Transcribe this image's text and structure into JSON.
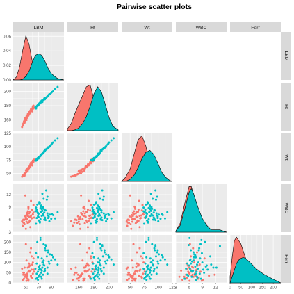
{
  "page": {
    "title": "Pairwise scatter plots"
  },
  "colors": {
    "group_a": "#F8766D",
    "group_b": "#00BFC4",
    "panel_bg": "#EBEBEB",
    "strip_bg": "#D9D9D9",
    "grid": "#FFFFFF"
  },
  "chart_data": {
    "type": "scatter",
    "subtype": "pairs-matrix",
    "title": "Pairwise scatter plots",
    "variables": [
      "LBM",
      "Ht",
      "Wt",
      "WBC",
      "Ferr"
    ],
    "grid": true,
    "legend": "none",
    "groups": [
      {
        "color": "#F8766D"
      },
      {
        "color": "#00BFC4"
      }
    ],
    "axes": {
      "LBM": {
        "range": [
          30,
          110
        ],
        "ticks": [
          50,
          70,
          90
        ],
        "density_ticks": [
          0.0,
          0.02,
          0.04,
          0.06
        ]
      },
      "Ht": {
        "range": [
          145,
          212
        ],
        "ticks": [
          160,
          180,
          200
        ]
      },
      "Wt": {
        "range": [
          35,
          125
        ],
        "ticks": [
          50,
          75,
          100,
          125
        ]
      },
      "WBC": {
        "range": [
          3,
          14.5
        ],
        "ticks": [
          3,
          6,
          9,
          12
        ]
      },
      "Ferr": {
        "range": [
          0,
          235
        ],
        "ticks": [
          0,
          50,
          100,
          150,
          200
        ]
      }
    },
    "densities": {
      "LBM": {
        "x": [
          30,
          35,
          40,
          45,
          50,
          55,
          60,
          65,
          70,
          75,
          80,
          85,
          90,
          95,
          100,
          105,
          110
        ],
        "a": [
          0,
          0.004,
          0.018,
          0.041,
          0.061,
          0.049,
          0.026,
          0.012,
          0.006,
          0.003,
          0.001,
          0,
          0,
          0,
          0,
          0,
          0
        ],
        "b": [
          0,
          0,
          0,
          0.001,
          0.005,
          0.012,
          0.024,
          0.034,
          0.036,
          0.034,
          0.026,
          0.016,
          0.009,
          0.005,
          0.002,
          0.001,
          0
        ]
      },
      "Ht": {
        "x": [
          145,
          150,
          155,
          160,
          165,
          170,
          175,
          180,
          185,
          190,
          195,
          200,
          205,
          212
        ],
        "a": [
          0.002,
          0.008,
          0.02,
          0.03,
          0.04,
          0.05,
          0.052,
          0.036,
          0.018,
          0.008,
          0.003,
          0.001,
          0,
          0
        ],
        "b": [
          0,
          0,
          0.001,
          0.003,
          0.008,
          0.016,
          0.028,
          0.042,
          0.05,
          0.044,
          0.03,
          0.015,
          0.005,
          0.001
        ]
      },
      "Wt": {
        "x": [
          35,
          42,
          50,
          57,
          64,
          71,
          78,
          85,
          92,
          99,
          106,
          113,
          120,
          125
        ],
        "a": [
          0,
          0.004,
          0.012,
          0.026,
          0.04,
          0.044,
          0.034,
          0.016,
          0.007,
          0.003,
          0.001,
          0,
          0,
          0
        ],
        "b": [
          0,
          0,
          0.002,
          0.006,
          0.013,
          0.022,
          0.028,
          0.03,
          0.026,
          0.018,
          0.009,
          0.004,
          0.001,
          0
        ]
      },
      "WBC": {
        "x": [
          3,
          4,
          5,
          6,
          6.5,
          7,
          7.5,
          8,
          9,
          10,
          11,
          12,
          13,
          14.5
        ],
        "a": [
          0.01,
          0.08,
          0.25,
          0.4,
          0.4,
          0.33,
          0.25,
          0.19,
          0.1,
          0.05,
          0.02,
          0.01,
          0.01,
          0
        ],
        "b": [
          0.01,
          0.06,
          0.2,
          0.35,
          0.38,
          0.34,
          0.28,
          0.22,
          0.12,
          0.06,
          0.02,
          0.02,
          0.02,
          0
        ]
      },
      "Ferr": {
        "x": [
          0,
          10,
          20,
          30,
          40,
          50,
          60,
          70,
          80,
          100,
          120,
          140,
          160,
          180,
          200,
          220,
          235
        ],
        "a": [
          0.002,
          0.008,
          0.013,
          0.014,
          0.013,
          0.012,
          0.01,
          0.008,
          0.006,
          0.004,
          0.0025,
          0.0015,
          0.001,
          0.0007,
          0.0004,
          0.0002,
          0
        ],
        "b": [
          0,
          0.002,
          0.004,
          0.006,
          0.007,
          0.0075,
          0.0078,
          0.0076,
          0.007,
          0.0058,
          0.0044,
          0.0034,
          0.0025,
          0.0018,
          0.0011,
          0.0005,
          0
        ]
      }
    },
    "points": {
      "a": [
        {
          "LBM": 50,
          "Ht": 162,
          "Wt": 52,
          "WBC": 6.6,
          "Ferr": 35
        },
        {
          "LBM": 55,
          "Ht": 168,
          "Wt": 60,
          "WBC": 7.5,
          "Ferr": 60
        },
        {
          "LBM": 47,
          "Ht": 158,
          "Wt": 48,
          "WBC": 5.2,
          "Ferr": 20
        },
        {
          "LBM": 60,
          "Ht": 172,
          "Wt": 65,
          "WBC": 8.4,
          "Ferr": 90
        },
        {
          "LBM": 52,
          "Ht": 165,
          "Wt": 58,
          "WBC": 6.1,
          "Ferr": 45
        },
        {
          "LBM": 58,
          "Ht": 175,
          "Wt": 70,
          "WBC": 7.0,
          "Ferr": 30
        },
        {
          "LBM": 45,
          "Ht": 152,
          "Wt": 45,
          "WBC": 4.5,
          "Ferr": 15
        },
        {
          "LBM": 62,
          "Ht": 176,
          "Wt": 72,
          "WBC": 9.5,
          "Ferr": 120
        },
        {
          "LBM": 56,
          "Ht": 170,
          "Wt": 63,
          "WBC": 5.8,
          "Ferr": 55
        },
        {
          "LBM": 53,
          "Ht": 167,
          "Wt": 55,
          "WBC": 6.9,
          "Ferr": 75
        },
        {
          "LBM": 49,
          "Ht": 163,
          "Wt": 50,
          "WBC": 11.8,
          "Ferr": 40
        },
        {
          "LBM": 57,
          "Ht": 171,
          "Wt": 62,
          "WBC": 7.8,
          "Ferr": 150
        },
        {
          "LBM": 51,
          "Ht": 160,
          "Wt": 54,
          "WBC": 5.5,
          "Ferr": 25
        },
        {
          "LBM": 59,
          "Ht": 174,
          "Wt": 68,
          "WBC": 6.3,
          "Ferr": 65
        },
        {
          "LBM": 54,
          "Ht": 166,
          "Wt": 59,
          "WBC": 8.9,
          "Ferr": 10
        },
        {
          "LBM": 46,
          "Ht": 155,
          "Wt": 47,
          "WBC": 6.0,
          "Ferr": 50
        },
        {
          "LBM": 61,
          "Ht": 178,
          "Wt": 74,
          "WBC": 7.2,
          "Ferr": 100
        },
        {
          "LBM": 48,
          "Ht": 161,
          "Wt": 51,
          "WBC": 4.9,
          "Ferr": 30
        },
        {
          "LBM": 55,
          "Ht": 169,
          "Wt": 61,
          "WBC": 6.7,
          "Ferr": 80
        },
        {
          "LBM": 52,
          "Ht": 164,
          "Wt": 57,
          "WBC": 7.4,
          "Ferr": 45
        },
        {
          "LBM": 44,
          "Ht": 150,
          "Wt": 44,
          "WBC": 5.6,
          "Ferr": 70
        },
        {
          "LBM": 58,
          "Ht": 173,
          "Wt": 66,
          "WBC": 10.5,
          "Ferr": 35
        },
        {
          "LBM": 50,
          "Ht": 162,
          "Wt": 56,
          "WBC": 6.2,
          "Ferr": 190
        },
        {
          "LBM": 63,
          "Ht": 177,
          "Wt": 76,
          "WBC": 6.5,
          "Ferr": 55
        },
        {
          "LBM": 53,
          "Ht": 168,
          "Wt": 60,
          "WBC": 5.1,
          "Ferr": 20
        },
        {
          "LBM": 56,
          "Ht": 170,
          "Wt": 64,
          "WBC": 7.9,
          "Ferr": 85
        },
        {
          "LBM": 49,
          "Ht": 159,
          "Wt": 49,
          "WBC": 6.8,
          "Ferr": 40
        },
        {
          "LBM": 57,
          "Ht": 172,
          "Wt": 67,
          "WBC": 4.2,
          "Ferr": 60
        },
        {
          "LBM": 51,
          "Ht": 165,
          "Wt": 53,
          "WBC": 7.1,
          "Ferr": 110
        },
        {
          "LBM": 60,
          "Ht": 175,
          "Wt": 71,
          "WBC": 8.2,
          "Ferr": 25
        },
        {
          "LBM": 47,
          "Ht": 157,
          "Wt": 48,
          "WBC": 5.9,
          "Ferr": 50
        },
        {
          "LBM": 54,
          "Ht": 167,
          "Wt": 58,
          "WBC": 9.1,
          "Ferr": 15
        },
        {
          "LBM": 59,
          "Ht": 176,
          "Wt": 69,
          "WBC": 6.4,
          "Ferr": 130
        },
        {
          "LBM": 52,
          "Ht": 163,
          "Wt": 55,
          "WBC": 7.6,
          "Ferr": 35
        },
        {
          "LBM": 55,
          "Ht": 171,
          "Wt": 62,
          "WBC": 5.4,
          "Ferr": 95
        },
        {
          "LBM": 48,
          "Ht": 156,
          "Wt": 46,
          "WBC": 6.0,
          "Ferr": 75
        },
        {
          "LBM": 61,
          "Ht": 179,
          "Wt": 73,
          "WBC": 7.3,
          "Ferr": 45
        },
        {
          "LBM": 50,
          "Ht": 162,
          "Wt": 52,
          "WBC": 3.8,
          "Ferr": 30
        },
        {
          "LBM": 56,
          "Ht": 169,
          "Wt": 63,
          "WBC": 6.6,
          "Ferr": 60
        },
        {
          "LBM": 53,
          "Ht": 166,
          "Wt": 57,
          "WBC": 8.0,
          "Ferr": 20
        },
        {
          "LBM": 58,
          "Ht": 174,
          "Wt": 67,
          "WBC": 6.9,
          "Ferr": 170
        },
        {
          "LBM": 46,
          "Ht": 154,
          "Wt": 46,
          "WBC": 5.3,
          "Ferr": 40
        },
        {
          "LBM": 62,
          "Ht": 180,
          "Wt": 75,
          "WBC": 7.7,
          "Ferr": 65
        },
        {
          "LBM": 51,
          "Ht": 160,
          "Wt": 54,
          "WBC": 6.1,
          "Ferr": 10
        },
        {
          "LBM": 54,
          "Ht": 168,
          "Wt": 59,
          "WBC": 8.6,
          "Ferr": 55
        },
        {
          "LBM": 57,
          "Ht": 173,
          "Wt": 65,
          "WBC": 5.7,
          "Ferr": 85
        }
      ],
      "b": [
        {
          "LBM": 70,
          "Ht": 182,
          "Wt": 80,
          "WBC": 7.4,
          "Ferr": 80
        },
        {
          "LBM": 75,
          "Ht": 186,
          "Wt": 86,
          "WBC": 8.5,
          "Ferr": 120
        },
        {
          "LBM": 80,
          "Ht": 190,
          "Wt": 92,
          "WBC": 6.5,
          "Ferr": 60
        },
        {
          "LBM": 68,
          "Ht": 180,
          "Wt": 78,
          "WBC": 9.6,
          "Ferr": 200
        },
        {
          "LBM": 85,
          "Ht": 194,
          "Wt": 98,
          "WBC": 7.0,
          "Ferr": 150
        },
        {
          "LBM": 72,
          "Ht": 184,
          "Wt": 82,
          "WBC": 5.5,
          "Ferr": 40
        },
        {
          "LBM": 78,
          "Ht": 188,
          "Wt": 90,
          "WBC": 11.0,
          "Ferr": 90
        },
        {
          "LBM": 65,
          "Ht": 178,
          "Wt": 74,
          "WBC": 8.0,
          "Ferr": 70
        },
        {
          "LBM": 90,
          "Ht": 198,
          "Wt": 104,
          "WBC": 6.2,
          "Ferr": 110
        },
        {
          "LBM": 74,
          "Ht": 185,
          "Wt": 84,
          "WBC": 7.8,
          "Ferr": 30
        },
        {
          "LBM": 82,
          "Ht": 191,
          "Wt": 95,
          "WBC": 13.0,
          "Ferr": 180
        },
        {
          "LBM": 69,
          "Ht": 181,
          "Wt": 79,
          "WBC": 6.8,
          "Ferr": 55
        },
        {
          "LBM": 77,
          "Ht": 187,
          "Wt": 88,
          "WBC": 9.0,
          "Ferr": 100
        },
        {
          "LBM": 66,
          "Ht": 176,
          "Wt": 75,
          "WBC": 5.0,
          "Ferr": 20
        },
        {
          "LBM": 88,
          "Ht": 196,
          "Wt": 101,
          "WBC": 7.2,
          "Ferr": 140
        },
        {
          "LBM": 71,
          "Ht": 183,
          "Wt": 81,
          "WBC": 10.2,
          "Ferr": 65
        },
        {
          "LBM": 79,
          "Ht": 189,
          "Wt": 91,
          "WBC": 6.0,
          "Ferr": 85
        },
        {
          "LBM": 73,
          "Ht": 184,
          "Wt": 83,
          "WBC": 8.8,
          "Ferr": 210
        },
        {
          "LBM": 84,
          "Ht": 193,
          "Wt": 97,
          "WBC": 7.5,
          "Ferr": 45
        },
        {
          "LBM": 67,
          "Ht": 179,
          "Wt": 77,
          "WBC": 6.4,
          "Ferr": 95
        },
        {
          "LBM": 76,
          "Ht": 186,
          "Wt": 87,
          "WBC": 12.2,
          "Ferr": 75
        },
        {
          "LBM": 81,
          "Ht": 190,
          "Wt": 94,
          "WBC": 8.2,
          "Ferr": 160
        },
        {
          "LBM": 70,
          "Ht": 182,
          "Wt": 80,
          "WBC": 5.8,
          "Ferr": 35
        },
        {
          "LBM": 93,
          "Ht": 200,
          "Wt": 108,
          "WBC": 7.1,
          "Ferr": 125
        },
        {
          "LBM": 74,
          "Ht": 185,
          "Wt": 85,
          "WBC": 9.4,
          "Ferr": 50
        },
        {
          "LBM": 86,
          "Ht": 195,
          "Wt": 99,
          "WBC": 6.7,
          "Ferr": 105
        },
        {
          "LBM": 68,
          "Ht": 180,
          "Wt": 76,
          "WBC": 7.9,
          "Ferr": 25
        },
        {
          "LBM": 78,
          "Ht": 188,
          "Wt": 89,
          "WBC": 8.6,
          "Ferr": 190
        },
        {
          "LBM": 72,
          "Ht": 183,
          "Wt": 82,
          "WBC": 5.3,
          "Ferr": 70
        },
        {
          "LBM": 83,
          "Ht": 192,
          "Wt": 96,
          "WBC": 10.8,
          "Ferr": 130
        },
        {
          "LBM": 75,
          "Ht": 186,
          "Wt": 86,
          "WBC": 6.9,
          "Ferr": 60
        },
        {
          "LBM": 69,
          "Ht": 181,
          "Wt": 79,
          "WBC": 7.6,
          "Ferr": 15
        },
        {
          "LBM": 80,
          "Ht": 189,
          "Wt": 93,
          "WBC": 8.3,
          "Ferr": 170
        },
        {
          "LBM": 96,
          "Ht": 203,
          "Wt": 112,
          "WBC": 6.3,
          "Ferr": 115
        },
        {
          "LBM": 71,
          "Ht": 182,
          "Wt": 81,
          "WBC": 9.8,
          "Ferr": 80
        },
        {
          "LBM": 77,
          "Ht": 187,
          "Wt": 88,
          "WBC": 7.3,
          "Ferr": 40
        },
        {
          "LBM": 87,
          "Ht": 196,
          "Wt": 100,
          "WBC": 5.6,
          "Ferr": 95
        },
        {
          "LBM": 66,
          "Ht": 178,
          "Wt": 74,
          "WBC": 8.9,
          "Ferr": 145
        },
        {
          "LBM": 79,
          "Ht": 190,
          "Wt": 92,
          "WBC": 7.7,
          "Ferr": 55
        },
        {
          "LBM": 73,
          "Ht": 184,
          "Wt": 83,
          "WBC": 6.1,
          "Ferr": 220
        },
        {
          "LBM": 84,
          "Ht": 193,
          "Wt": 98,
          "WBC": 11.5,
          "Ferr": 75
        },
        {
          "LBM": 76,
          "Ht": 185,
          "Wt": 87,
          "WBC": 8.1,
          "Ferr": 100
        },
        {
          "LBM": 70,
          "Ht": 181,
          "Wt": 78,
          "WBC": 6.6,
          "Ferr": 30
        },
        {
          "LBM": 91,
          "Ht": 199,
          "Wt": 106,
          "WBC": 7.4,
          "Ferr": 135
        },
        {
          "LBM": 74,
          "Ht": 186,
          "Wt": 85,
          "WBC": 9.2,
          "Ferr": 65
        },
        {
          "LBM": 81,
          "Ht": 191,
          "Wt": 95,
          "WBC": 5.9,
          "Ferr": 185
        },
        {
          "LBM": 67,
          "Ht": 179,
          "Wt": 77,
          "WBC": 8.4,
          "Ferr": 45
        },
        {
          "LBM": 78,
          "Ht": 188,
          "Wt": 90,
          "WBC": 7.0,
          "Ferr": 110
        },
        {
          "LBM": 72,
          "Ht": 183,
          "Wt": 82,
          "WBC": 10.0,
          "Ferr": 85
        },
        {
          "LBM": 85,
          "Ht": 194,
          "Wt": 99,
          "WBC": 6.4,
          "Ferr": 160
        },
        {
          "LBM": 75,
          "Ht": 187,
          "Wt": 86,
          "WBC": 8.7,
          "Ferr": 20
        },
        {
          "LBM": 69,
          "Ht": 180,
          "Wt": 79,
          "WBC": 7.5,
          "Ferr": 125
        },
        {
          "LBM": 80,
          "Ht": 189,
          "Wt": 93,
          "WBC": 6.2,
          "Ferr": 70
        },
        {
          "LBM": 100,
          "Ht": 206,
          "Wt": 116,
          "WBC": 7.8,
          "Ferr": 90
        }
      ]
    }
  }
}
